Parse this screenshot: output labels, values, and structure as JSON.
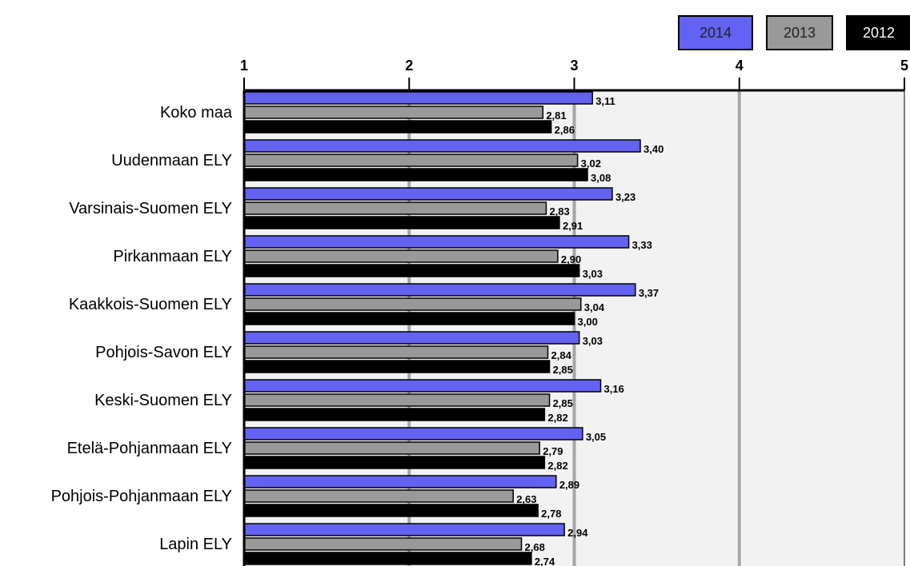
{
  "chart_data": {
    "type": "bar",
    "orientation": "horizontal",
    "categories": [
      "Koko maa",
      "Uudenmaan ELY",
      "Varsinais-Suomen ELY",
      "Pirkanmaan ELY",
      "Kaakkois-Suomen ELY",
      "Pohjois-Savon ELY",
      "Keski-Suomen ELY",
      "Etelä-Pohjanmaan ELY",
      "Pohjois-Pohjanmaan ELY",
      "Lapin ELY"
    ],
    "series": [
      {
        "name": "2014",
        "color": "#6262f4",
        "values": [
          3.11,
          3.4,
          3.23,
          3.33,
          3.37,
          3.03,
          3.16,
          3.05,
          2.89,
          2.94
        ],
        "value_labels": [
          "3,11",
          "3,40",
          "3,23",
          "3,33",
          "3,37",
          "3,03",
          "3,16",
          "3,05",
          "2,89",
          "2,94"
        ]
      },
      {
        "name": "2013",
        "color": "#999999",
        "values": [
          2.81,
          3.02,
          2.83,
          2.9,
          3.04,
          2.84,
          2.85,
          2.79,
          2.63,
          2.68
        ],
        "value_labels": [
          "2,81",
          "3,02",
          "2,83",
          "2,90",
          "3,04",
          "2,84",
          "2,85",
          "2,79",
          "2,63",
          "2,68"
        ]
      },
      {
        "name": "2012",
        "color": "#000000",
        "values": [
          2.86,
          3.08,
          2.91,
          3.03,
          3.0,
          2.85,
          2.82,
          2.82,
          2.78,
          2.74
        ],
        "value_labels": [
          "2,86",
          "3,08",
          "2,91",
          "3,03",
          "3,00",
          "2,85",
          "2,82",
          "2,82",
          "2,78",
          "2,74"
        ]
      }
    ],
    "xlim": [
      1,
      5
    ],
    "xticks": [
      1,
      2,
      3,
      4,
      5
    ],
    "grid": true,
    "legend": "top-right"
  }
}
